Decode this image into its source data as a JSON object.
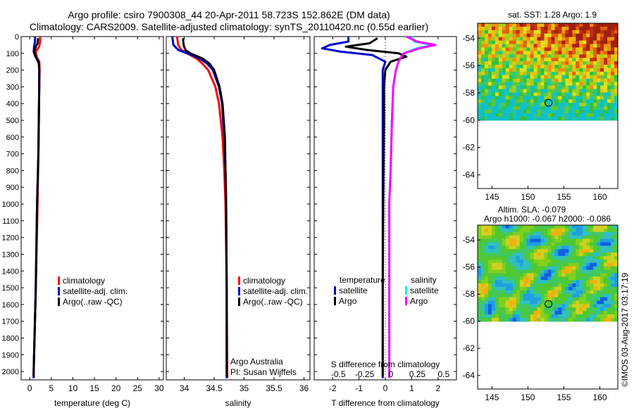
{
  "title_line1": "Argo profile: csiro 7900308_44 20-Apr-2011 58.723S 152.862E (DM data)",
  "title_line2": "Climatology: CARS2009. Satellite-adjusted climatology: synTS_20110420.nc (0.55d earlier)",
  "map1_title": "sat. SST: 1.28 Argo: 1.9",
  "map2_title1": "Altim. SLA: -0.079",
  "map2_title2": "Argo h1000: -0.067 h2000: -0.086",
  "side_credit": "©IMOS 03-Aug-2017 03:17:19",
  "credit1": "Argo Australia",
  "credit2": "PI: Susan Wijffels",
  "colors": {
    "climatology": "#ff0000",
    "satellite": "#0000cc",
    "argo": "#000000",
    "sat_salinity": "#00eeee",
    "argo_salinity": "#ff00ff"
  },
  "legend_main": [
    "climatology",
    "satellite-adj. clim.",
    "Argo(..raw -QC)"
  ],
  "legend_diff": {
    "temperature": "temperature",
    "salinity": "salinity",
    "satellite": "satellite",
    "argo": "Argo"
  },
  "chart_data": [
    {
      "type": "line",
      "name": "temperature",
      "xlabel": "temperature (deg C)",
      "xlim": [
        -2,
        31
      ],
      "ylim": [
        0,
        2050
      ],
      "xticks": [
        0,
        5,
        10,
        15,
        20,
        25,
        30
      ],
      "yticks": [
        0,
        100,
        200,
        300,
        400,
        500,
        600,
        700,
        800,
        900,
        1000,
        1100,
        1200,
        1300,
        1400,
        1500,
        1600,
        1700,
        1800,
        1900,
        2000
      ],
      "series": [
        {
          "key": "climatology",
          "y": [
            0,
            30,
            60,
            90,
            120,
            150,
            200,
            300,
            500,
            700,
            1000,
            1500,
            2000,
            2040
          ],
          "x": [
            2.4,
            2.4,
            2.2,
            1.4,
            1.6,
            2.2,
            2.3,
            2.2,
            2.1,
            2.0,
            1.8,
            1.4,
            0.9,
            0.9
          ]
        },
        {
          "key": "satellite",
          "y": [
            0,
            30,
            60,
            90,
            120,
            150,
            200,
            300,
            500,
            700,
            1000,
            1500,
            2000,
            2040
          ],
          "x": [
            1.2,
            1.2,
            1.0,
            0.9,
            1.3,
            2.1,
            2.2,
            2.2,
            2.1,
            2.0,
            1.7,
            1.4,
            0.9,
            0.9
          ]
        },
        {
          "key": "argo",
          "y": [
            10,
            40,
            60,
            90,
            120,
            160,
            200,
            300,
            500,
            700,
            1000,
            1500,
            2000,
            2030
          ],
          "x": [
            1.9,
            1.8,
            1.4,
            1.0,
            1.4,
            2.1,
            2.2,
            2.2,
            2.1,
            2.0,
            1.7,
            1.4,
            0.9,
            0.9
          ]
        }
      ]
    },
    {
      "type": "line",
      "name": "salinity",
      "xlabel": "salinity",
      "xlim": [
        33.7,
        36.1
      ],
      "ylim": [
        0,
        2050
      ],
      "xticks": [
        34,
        34.5,
        35,
        35.5,
        36
      ],
      "series": [
        {
          "key": "climatology",
          "y": [
            0,
            50,
            80,
            100,
            130,
            160,
            200,
            300,
            400,
            600,
            800,
            1000,
            1500,
            2040
          ],
          "x": [
            33.88,
            33.9,
            33.95,
            34.05,
            34.2,
            34.3,
            34.4,
            34.52,
            34.58,
            34.64,
            34.67,
            34.69,
            34.71,
            34.72
          ]
        },
        {
          "key": "satellite",
          "y": [
            0,
            50,
            80,
            100,
            130,
            160,
            200,
            300,
            400,
            600,
            800,
            1000,
            1500,
            2040
          ],
          "x": [
            33.8,
            33.82,
            33.9,
            34.05,
            34.25,
            34.38,
            34.48,
            34.58,
            34.63,
            34.67,
            34.69,
            34.7,
            34.71,
            34.71
          ]
        },
        {
          "key": "argo",
          "y": [
            10,
            50,
            80,
            100,
            130,
            160,
            200,
            300,
            400,
            600,
            800,
            1000,
            1500,
            2030
          ],
          "x": [
            33.98,
            33.99,
            34.02,
            34.1,
            34.3,
            34.42,
            34.5,
            34.59,
            34.64,
            34.68,
            34.69,
            34.7,
            34.71,
            34.71
          ]
        }
      ]
    },
    {
      "type": "line",
      "name": "difference",
      "xlabel": "T difference from climatology",
      "xlabel_top": "S difference from climatology",
      "xlim": [
        -2.7,
        2.7
      ],
      "ylim": [
        0,
        2050
      ],
      "xticks": [
        -2,
        -1,
        0,
        1,
        2
      ],
      "xticks_top": [
        "-0.5",
        "-0.25",
        "0",
        "0.25",
        "0.5"
      ],
      "series": [
        {
          "key": "satellite",
          "y": [
            0,
            30,
            50,
            70,
            90,
            110,
            150,
            200,
            300,
            500,
            1000,
            1500,
            2000,
            2040
          ],
          "x": [
            -1.4,
            -1.4,
            -2.1,
            -2.4,
            -1.7,
            -0.5,
            0.0,
            -0.1,
            -0.1,
            -0.1,
            -0.1,
            -0.1,
            -0.1,
            -0.1
          ]
        },
        {
          "key": "argo",
          "y": [
            10,
            40,
            60,
            80,
            100,
            120,
            150,
            200,
            300,
            500,
            1000,
            1500,
            2000,
            2030
          ],
          "x": [
            -0.3,
            -0.6,
            -1.5,
            -0.7,
            0.5,
            0.8,
            0.2,
            0.0,
            -0.05,
            -0.05,
            -0.08,
            -0.1,
            -0.1,
            -0.1
          ]
        },
        {
          "key": "sat_salinity",
          "y": [
            0,
            30,
            50,
            70,
            100,
            150,
            200,
            300,
            500,
            800,
            1000,
            1500,
            2000,
            2040
          ],
          "x": [
            1.0,
            1.1,
            1.8,
            1.2,
            0.7,
            0.5,
            0.4,
            0.3,
            0.25,
            0.2,
            0.15,
            0.15,
            0.15,
            0.15
          ]
        },
        {
          "key": "argo_salinity",
          "y": [
            0,
            30,
            50,
            70,
            100,
            150,
            200,
            300,
            500,
            800,
            1000,
            1500,
            2000,
            2040
          ],
          "x": [
            0.8,
            1.2,
            1.9,
            1.3,
            0.7,
            0.5,
            0.4,
            0.3,
            0.25,
            0.2,
            0.15,
            0.15,
            0.15,
            0.15
          ]
        }
      ]
    },
    {
      "type": "heatmap",
      "name": "sst_map",
      "xticks": [
        145,
        150,
        155,
        160
      ],
      "yticks": [
        -54,
        -56,
        -58,
        -60,
        -62,
        -64
      ],
      "xlim": [
        143,
        162.5
      ],
      "ylim": [
        -65,
        -52.9
      ],
      "data_lat_min": -60,
      "float_lon": 152.862,
      "float_lat": -58.723
    },
    {
      "type": "heatmap",
      "name": "sla_map",
      "xticks": [
        145,
        150,
        155,
        160
      ],
      "yticks": [
        -54,
        -56,
        -58,
        -60,
        -62,
        -64
      ],
      "xlim": [
        143,
        162.5
      ],
      "ylim": [
        -65,
        -52.9
      ],
      "data_lat_min": -60,
      "float_lon": 152.862,
      "float_lat": -58.723
    }
  ]
}
